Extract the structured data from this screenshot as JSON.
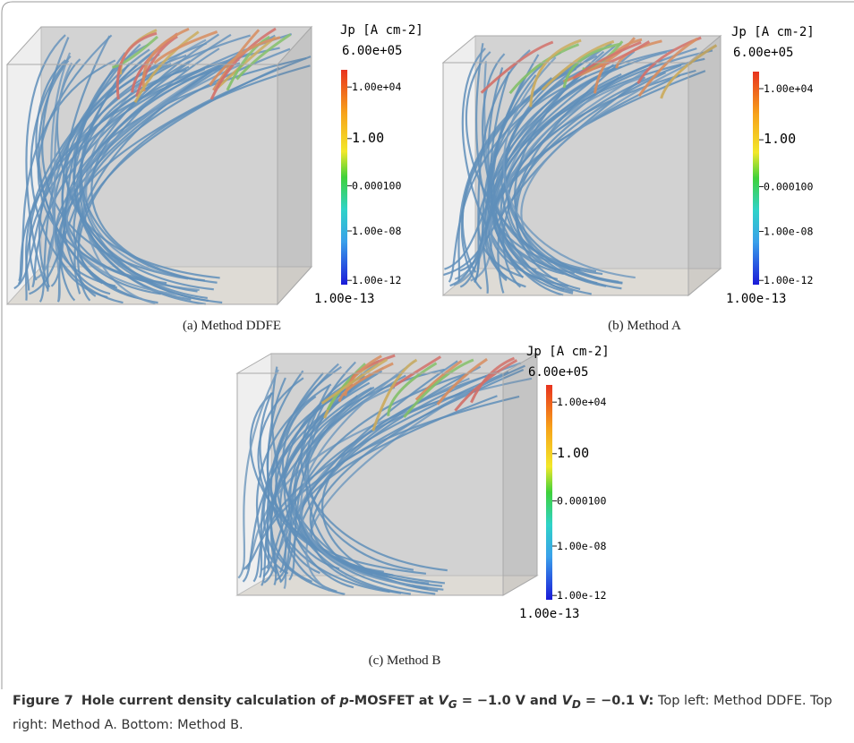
{
  "panels": [
    {
      "caption": "(a) Method DDFE",
      "colorbar": {
        "title": "Jp [A cm-2]",
        "max": "6.00e+05",
        "min": "1.00e-13",
        "ticks": [
          "1.00e+04",
          "1.00",
          "0.000100",
          "1.00e-08",
          "1.00e-12"
        ]
      }
    },
    {
      "caption": "(b) Method A",
      "colorbar": {
        "title": "Jp [A cm-2]",
        "max": "6.00e+05",
        "min": "1.00e-13",
        "ticks": [
          "1.00e+04",
          "1.00",
          "0.000100",
          "1.00e-08",
          "1.00e-12"
        ]
      }
    },
    {
      "caption": "(c) Method B",
      "colorbar": {
        "title": "Jp [A cm-2]",
        "max": "6.00e+05",
        "min": "1.00e-13",
        "ticks": [
          "1.00e+04",
          "1.00",
          "0.000100",
          "1.00e-08",
          "1.00e-12"
        ]
      }
    }
  ],
  "figure_caption": {
    "label": "Figure 7",
    "title_parts": [
      "Hole current density calculation of ",
      "p",
      "-MOSFET at ",
      "V",
      "G",
      " = −1.0 V and ",
      "V",
      "D",
      " = −0.1 V:"
    ],
    "text": "Top left: Method DDFE. Top right: Method A. Bottom: Method B."
  }
}
